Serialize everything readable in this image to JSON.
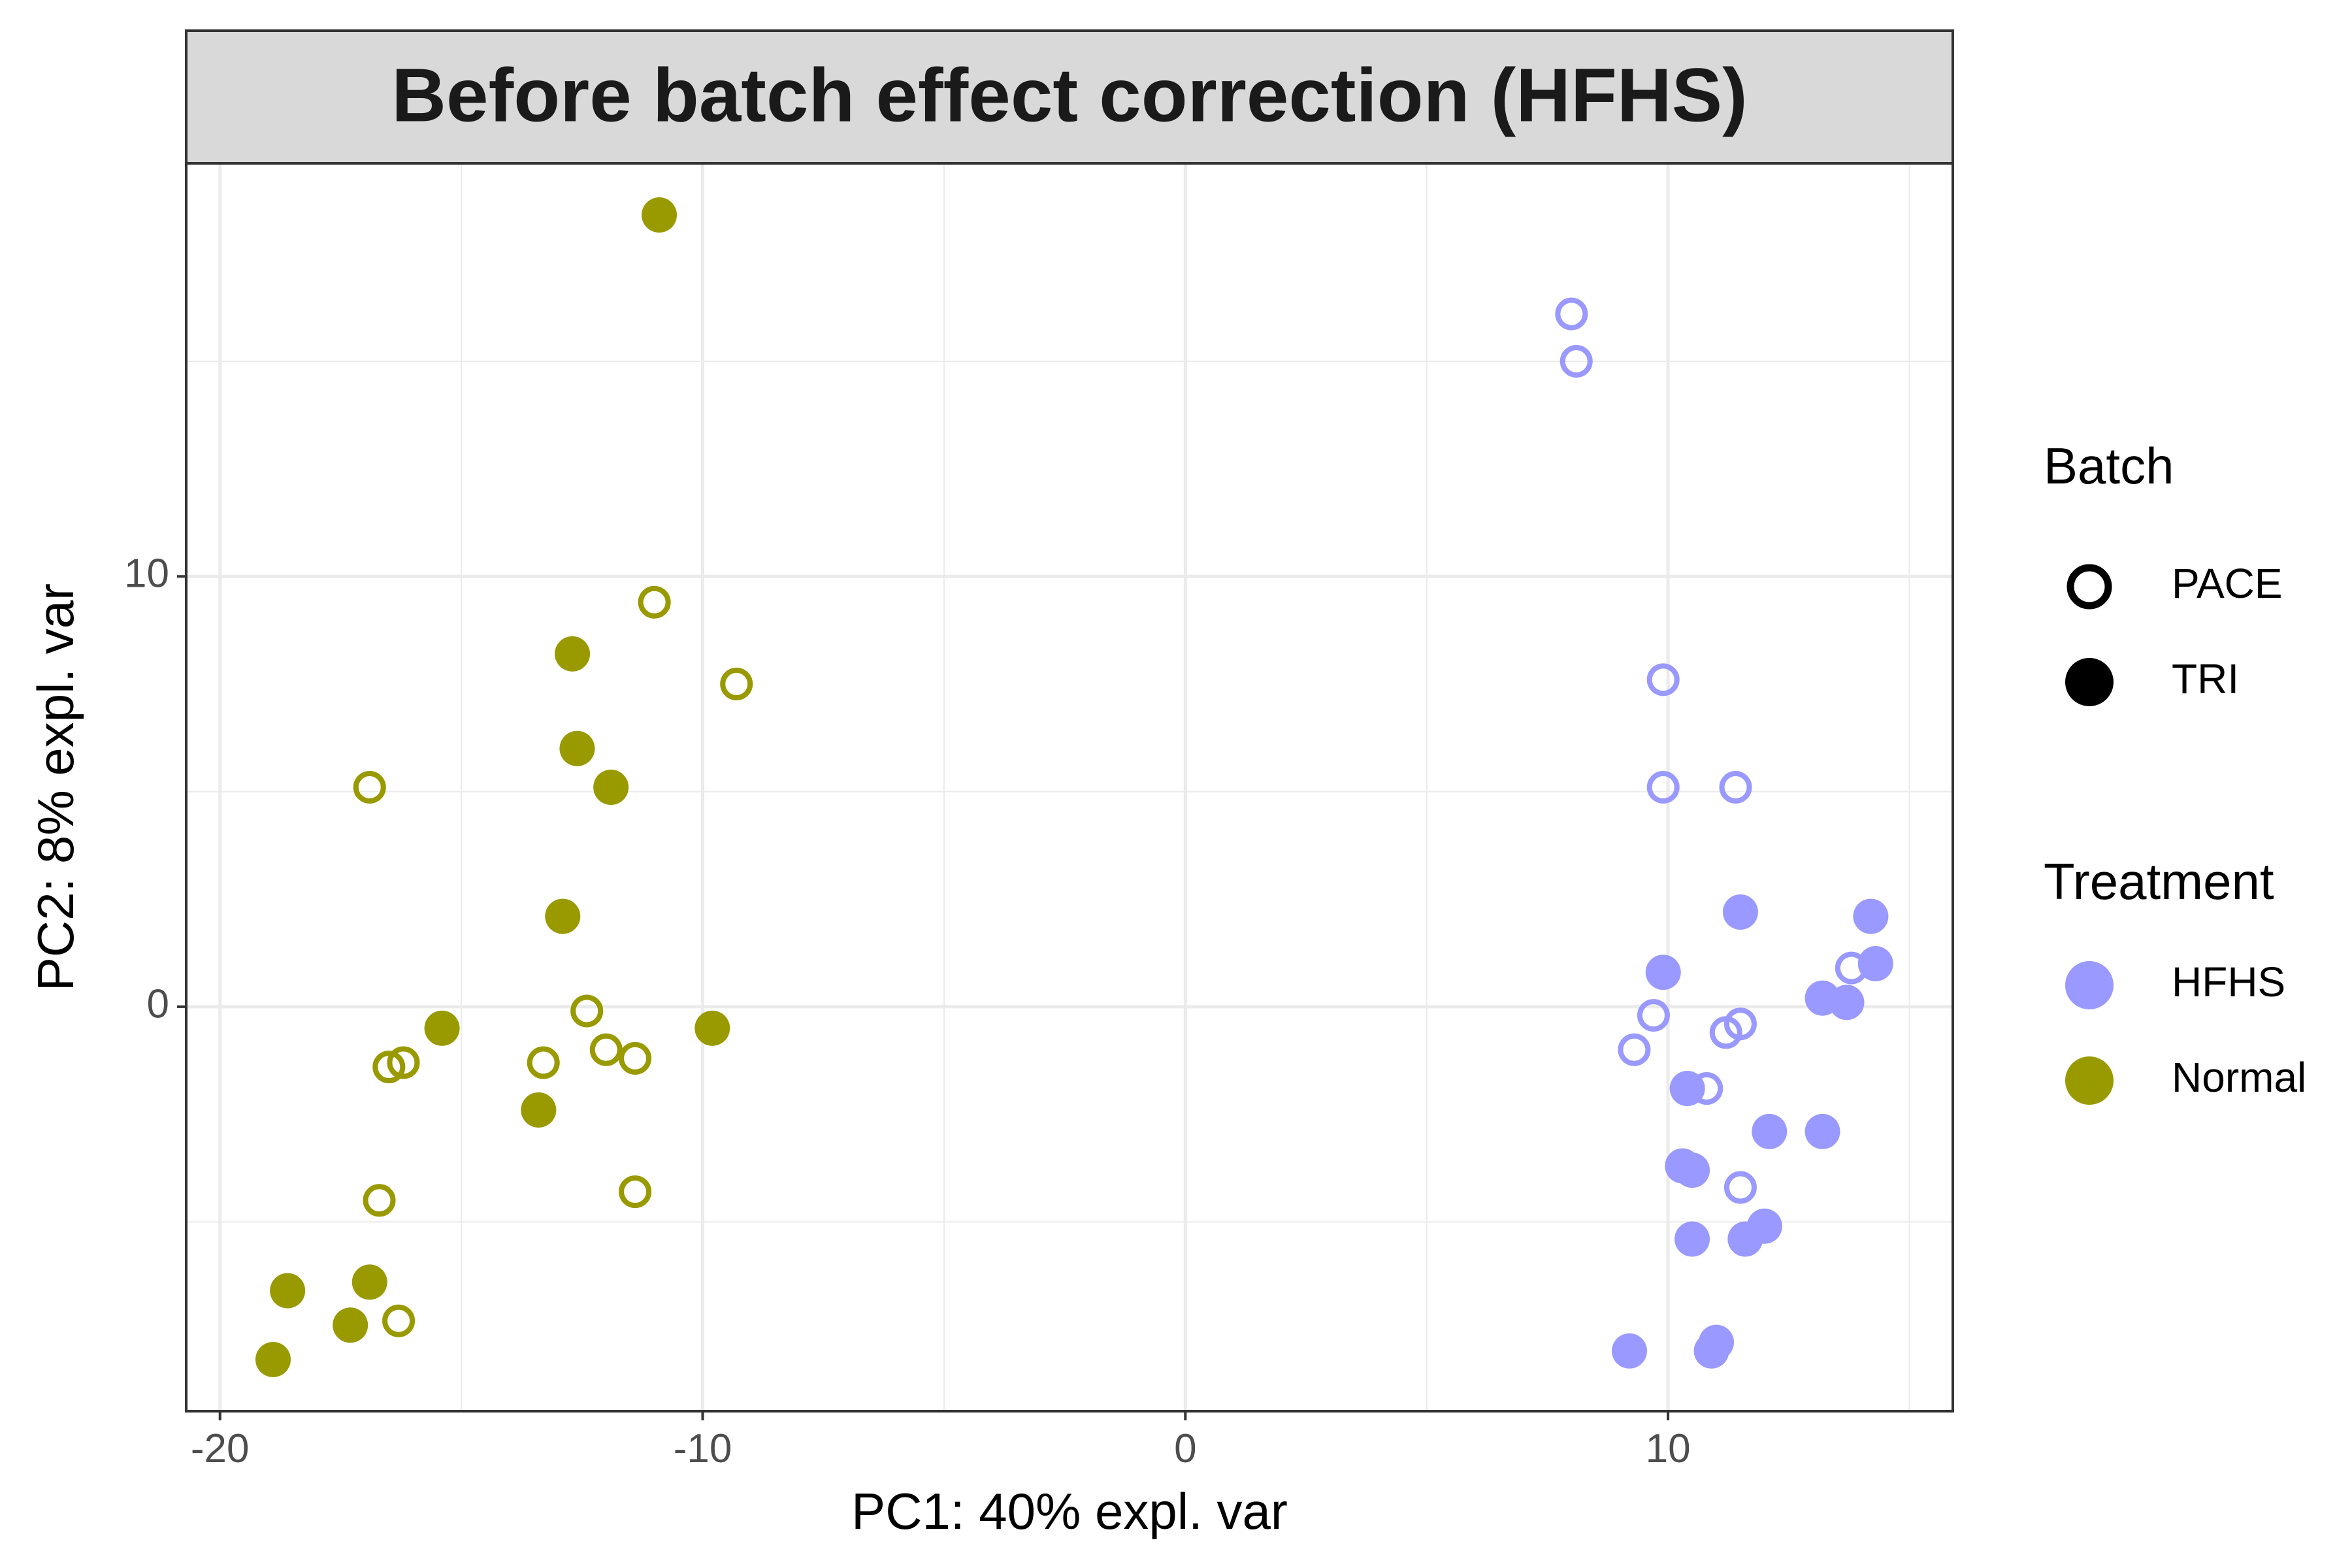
{
  "chart_data": {
    "type": "scatter",
    "title": "Before batch effect correction (HFHS)",
    "xlabel": "PC1: 40% expl. var",
    "ylabel": "PC2: 8% expl. var",
    "xlim": [
      -20.7,
      15.9
    ],
    "ylim": [
      -9.4,
      19.6
    ],
    "x_ticks": [
      -20,
      -10,
      0,
      10
    ],
    "x_tick_labels": [
      "-20",
      "-10",
      "0",
      "10"
    ],
    "y_ticks": [
      0,
      10
    ],
    "y_tick_labels": [
      "0",
      "10"
    ],
    "grid": true,
    "legend_position": "right",
    "colors": {
      "HFHS": "#9999ff",
      "Normal": "#999900"
    },
    "legend": {
      "batch_title": "Batch",
      "batch_items": [
        {
          "label": "PACE",
          "shape": "open-circle"
        },
        {
          "label": "TRI",
          "shape": "filled-circle"
        }
      ],
      "treatment_title": "Treatment",
      "treatment_items": [
        {
          "label": "HFHS",
          "color": "#9999ff"
        },
        {
          "label": "Normal",
          "color": "#999900"
        }
      ]
    },
    "points": [
      {
        "x": -10.9,
        "y": 18.4,
        "treatment": "Normal",
        "batch": "TRI"
      },
      {
        "x": -11.0,
        "y": 9.4,
        "treatment": "Normal",
        "batch": "PACE"
      },
      {
        "x": -9.3,
        "y": 7.5,
        "treatment": "Normal",
        "batch": "PACE"
      },
      {
        "x": -12.7,
        "y": 8.2,
        "treatment": "Normal",
        "batch": "TRI"
      },
      {
        "x": -12.6,
        "y": 6.0,
        "treatment": "Normal",
        "batch": "TRI"
      },
      {
        "x": -11.9,
        "y": 5.1,
        "treatment": "Normal",
        "batch": "TRI"
      },
      {
        "x": -16.9,
        "y": 5.1,
        "treatment": "Normal",
        "batch": "PACE"
      },
      {
        "x": -12.9,
        "y": 2.1,
        "treatment": "Normal",
        "batch": "TRI"
      },
      {
        "x": -12.4,
        "y": -0.1,
        "treatment": "Normal",
        "batch": "PACE"
      },
      {
        "x": -15.4,
        "y": -0.5,
        "treatment": "Normal",
        "batch": "TRI"
      },
      {
        "x": -9.8,
        "y": -0.5,
        "treatment": "Normal",
        "batch": "TRI"
      },
      {
        "x": -12.0,
        "y": -1.0,
        "treatment": "Normal",
        "batch": "PACE"
      },
      {
        "x": -11.4,
        "y": -1.2,
        "treatment": "Normal",
        "batch": "PACE"
      },
      {
        "x": -13.3,
        "y": -1.3,
        "treatment": "Normal",
        "batch": "PACE"
      },
      {
        "x": -16.2,
        "y": -1.3,
        "treatment": "Normal",
        "batch": "PACE"
      },
      {
        "x": -16.5,
        "y": -1.4,
        "treatment": "Normal",
        "batch": "PACE"
      },
      {
        "x": -13.4,
        "y": -2.4,
        "treatment": "Normal",
        "batch": "TRI"
      },
      {
        "x": -11.4,
        "y": -4.3,
        "treatment": "Normal",
        "batch": "PACE"
      },
      {
        "x": -16.7,
        "y": -4.5,
        "treatment": "Normal",
        "batch": "PACE"
      },
      {
        "x": -16.9,
        "y": -6.4,
        "treatment": "Normal",
        "batch": "TRI"
      },
      {
        "x": -18.6,
        "y": -6.6,
        "treatment": "Normal",
        "batch": "TRI"
      },
      {
        "x": -17.3,
        "y": -7.4,
        "treatment": "Normal",
        "batch": "TRI"
      },
      {
        "x": -16.3,
        "y": -7.3,
        "treatment": "Normal",
        "batch": "PACE"
      },
      {
        "x": -18.9,
        "y": -8.2,
        "treatment": "Normal",
        "batch": "TRI"
      },
      {
        "x": 8.0,
        "y": 16.1,
        "treatment": "HFHS",
        "batch": "PACE"
      },
      {
        "x": 8.1,
        "y": 15.0,
        "treatment": "HFHS",
        "batch": "PACE"
      },
      {
        "x": 9.9,
        "y": 7.6,
        "treatment": "HFHS",
        "batch": "PACE"
      },
      {
        "x": 9.9,
        "y": 5.1,
        "treatment": "HFHS",
        "batch": "PACE"
      },
      {
        "x": 11.4,
        "y": 5.1,
        "treatment": "HFHS",
        "batch": "PACE"
      },
      {
        "x": 11.5,
        "y": 2.2,
        "treatment": "HFHS",
        "batch": "TRI"
      },
      {
        "x": 14.2,
        "y": 2.1,
        "treatment": "HFHS",
        "batch": "TRI"
      },
      {
        "x": 13.8,
        "y": 0.9,
        "treatment": "HFHS",
        "batch": "PACE"
      },
      {
        "x": 14.3,
        "y": 1.0,
        "treatment": "HFHS",
        "batch": "TRI"
      },
      {
        "x": 9.9,
        "y": 0.8,
        "treatment": "HFHS",
        "batch": "TRI"
      },
      {
        "x": 13.2,
        "y": 0.2,
        "treatment": "HFHS",
        "batch": "TRI"
      },
      {
        "x": 13.7,
        "y": 0.1,
        "treatment": "HFHS",
        "batch": "TRI"
      },
      {
        "x": 9.7,
        "y": -0.2,
        "treatment": "HFHS",
        "batch": "PACE"
      },
      {
        "x": 11.5,
        "y": -0.4,
        "treatment": "HFHS",
        "batch": "PACE"
      },
      {
        "x": 11.2,
        "y": -0.6,
        "treatment": "HFHS",
        "batch": "PACE"
      },
      {
        "x": 9.3,
        "y": -1.0,
        "treatment": "HFHS",
        "batch": "PACE"
      },
      {
        "x": 10.8,
        "y": -1.9,
        "treatment": "HFHS",
        "batch": "PACE"
      },
      {
        "x": 10.4,
        "y": -1.9,
        "treatment": "HFHS",
        "batch": "TRI"
      },
      {
        "x": 12.1,
        "y": -2.9,
        "treatment": "HFHS",
        "batch": "TRI"
      },
      {
        "x": 13.2,
        "y": -2.9,
        "treatment": "HFHS",
        "batch": "TRI"
      },
      {
        "x": 10.3,
        "y": -3.7,
        "treatment": "HFHS",
        "batch": "TRI"
      },
      {
        "x": 10.5,
        "y": -3.8,
        "treatment": "HFHS",
        "batch": "TRI"
      },
      {
        "x": 11.5,
        "y": -4.2,
        "treatment": "HFHS",
        "batch": "PACE"
      },
      {
        "x": 12.0,
        "y": -5.1,
        "treatment": "HFHS",
        "batch": "TRI"
      },
      {
        "x": 10.5,
        "y": -5.4,
        "treatment": "HFHS",
        "batch": "TRI"
      },
      {
        "x": 11.6,
        "y": -5.4,
        "treatment": "HFHS",
        "batch": "TRI"
      },
      {
        "x": 11.0,
        "y": -7.8,
        "treatment": "HFHS",
        "batch": "TRI"
      },
      {
        "x": 9.2,
        "y": -8.0,
        "treatment": "HFHS",
        "batch": "TRI"
      },
      {
        "x": 10.9,
        "y": -8.0,
        "treatment": "HFHS",
        "batch": "TRI"
      }
    ]
  }
}
